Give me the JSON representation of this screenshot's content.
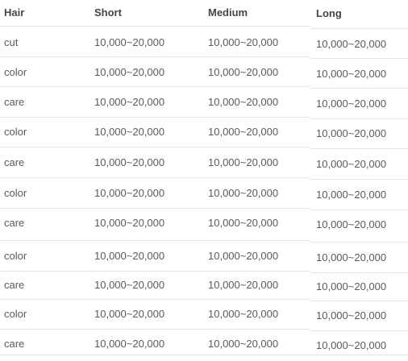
{
  "table": {
    "columns": [
      "Hair",
      "Short",
      "Medium",
      "Long"
    ],
    "rows": [
      [
        "cut",
        "10,000~20,000",
        "10,000~20,000",
        "10,000~20,000"
      ],
      [
        "color",
        "10,000~20,000",
        "10,000~20,000",
        "10,000~20,000"
      ],
      [
        "care",
        "10,000~20,000",
        "10,000~20,000",
        "10,000~20,000"
      ],
      [
        "color",
        "10,000~20,000",
        "10,000~20,000",
        "10,000~20,000"
      ],
      [
        "care",
        "10,000~20,000",
        "10,000~20,000",
        "10,000~20,000"
      ],
      [
        "color",
        "10,000~20,000",
        "10,000~20,000",
        "10,000~20,000"
      ],
      [
        "care",
        "10,000~20,000",
        "10,000~20,000",
        "10,000~20,000"
      ],
      [
        "color",
        "10,000~20,000",
        "10,000~20,000",
        "10,000~20,000"
      ],
      [
        "care",
        "10,000~20,000",
        "10,000~20,000",
        "10,000~20,000"
      ],
      [
        "color",
        "10,000~20,000",
        "10,000~20,000",
        "10,000~20,000"
      ],
      [
        "care",
        "10,000~20,000",
        "10,000~20,000",
        "10,000~20,000"
      ]
    ]
  }
}
